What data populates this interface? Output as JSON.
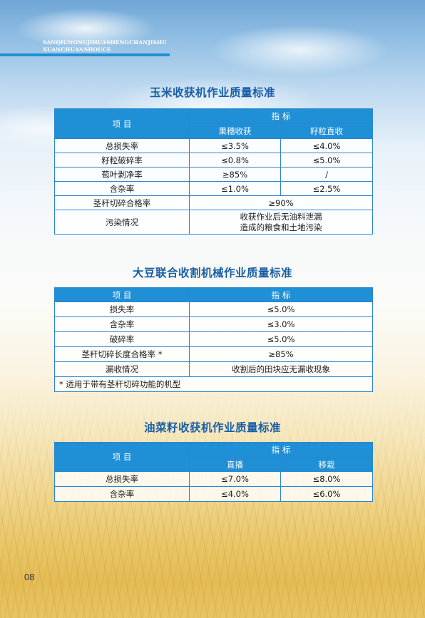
{
  "header": {
    "line1": "SANQIUNONGJIHUASHENGCHANJISHU",
    "line2": "XUANCHUANSHOUCE"
  },
  "corn": {
    "title": "玉米收获机作业质量标准",
    "h_item": "项  目",
    "h_index": "指  标",
    "h_col1": "果穗收获",
    "h_col2": "籽粒直收",
    "rows": [
      {
        "item": "总损失率",
        "c1": "≤3.5%",
        "c2": "≤4.0%"
      },
      {
        "item": "籽粒破碎率",
        "c1": "≤0.8%",
        "c2": "≤5.0%"
      },
      {
        "item": "苞叶剥净率",
        "c1": "≥85%",
        "c2": "/"
      },
      {
        "item": "含杂率",
        "c1": "≤1.0%",
        "c2": "≤2.5%"
      }
    ],
    "straw_item": "茎秆切碎合格率",
    "straw_value": "≥90%",
    "pollution_item": "污染情况",
    "pollution_line1": "收获作业后无油料泄漏",
    "pollution_line2": "造成的粮食和土地污染"
  },
  "soybean": {
    "title": "大豆联合收割机械作业质量标准",
    "h_item": "项  目",
    "h_index": "指  标",
    "rows": [
      {
        "item": "损失率",
        "value": "≤5.0%"
      },
      {
        "item": "含杂率",
        "value": "≤3.0%"
      },
      {
        "item": "破碎率",
        "value": "≤5.0%"
      },
      {
        "item": "茎秆切碎长度合格率 *",
        "value": "≥85%"
      },
      {
        "item": "漏收情况",
        "value": "收割后的田块应无漏收现象"
      }
    ],
    "note": "* 适用于带有茎秆切碎功能的机型"
  },
  "rapeseed": {
    "title": "油菜籽收获机作业质量标准",
    "h_item": "项  目",
    "h_index": "指  标",
    "h_col1": "直播",
    "h_col2": "移栽",
    "rows": [
      {
        "item": "总损失率",
        "c1": "≤7.0%",
        "c2": "≤8.0%"
      },
      {
        "item": "含杂率",
        "c1": "≤4.0%",
        "c2": "≤6.0%"
      }
    ]
  },
  "page_number": "08",
  "colors": {
    "table_header": "#1f8fd6",
    "title": "#1a5fa6",
    "border": "#2a86cf"
  }
}
